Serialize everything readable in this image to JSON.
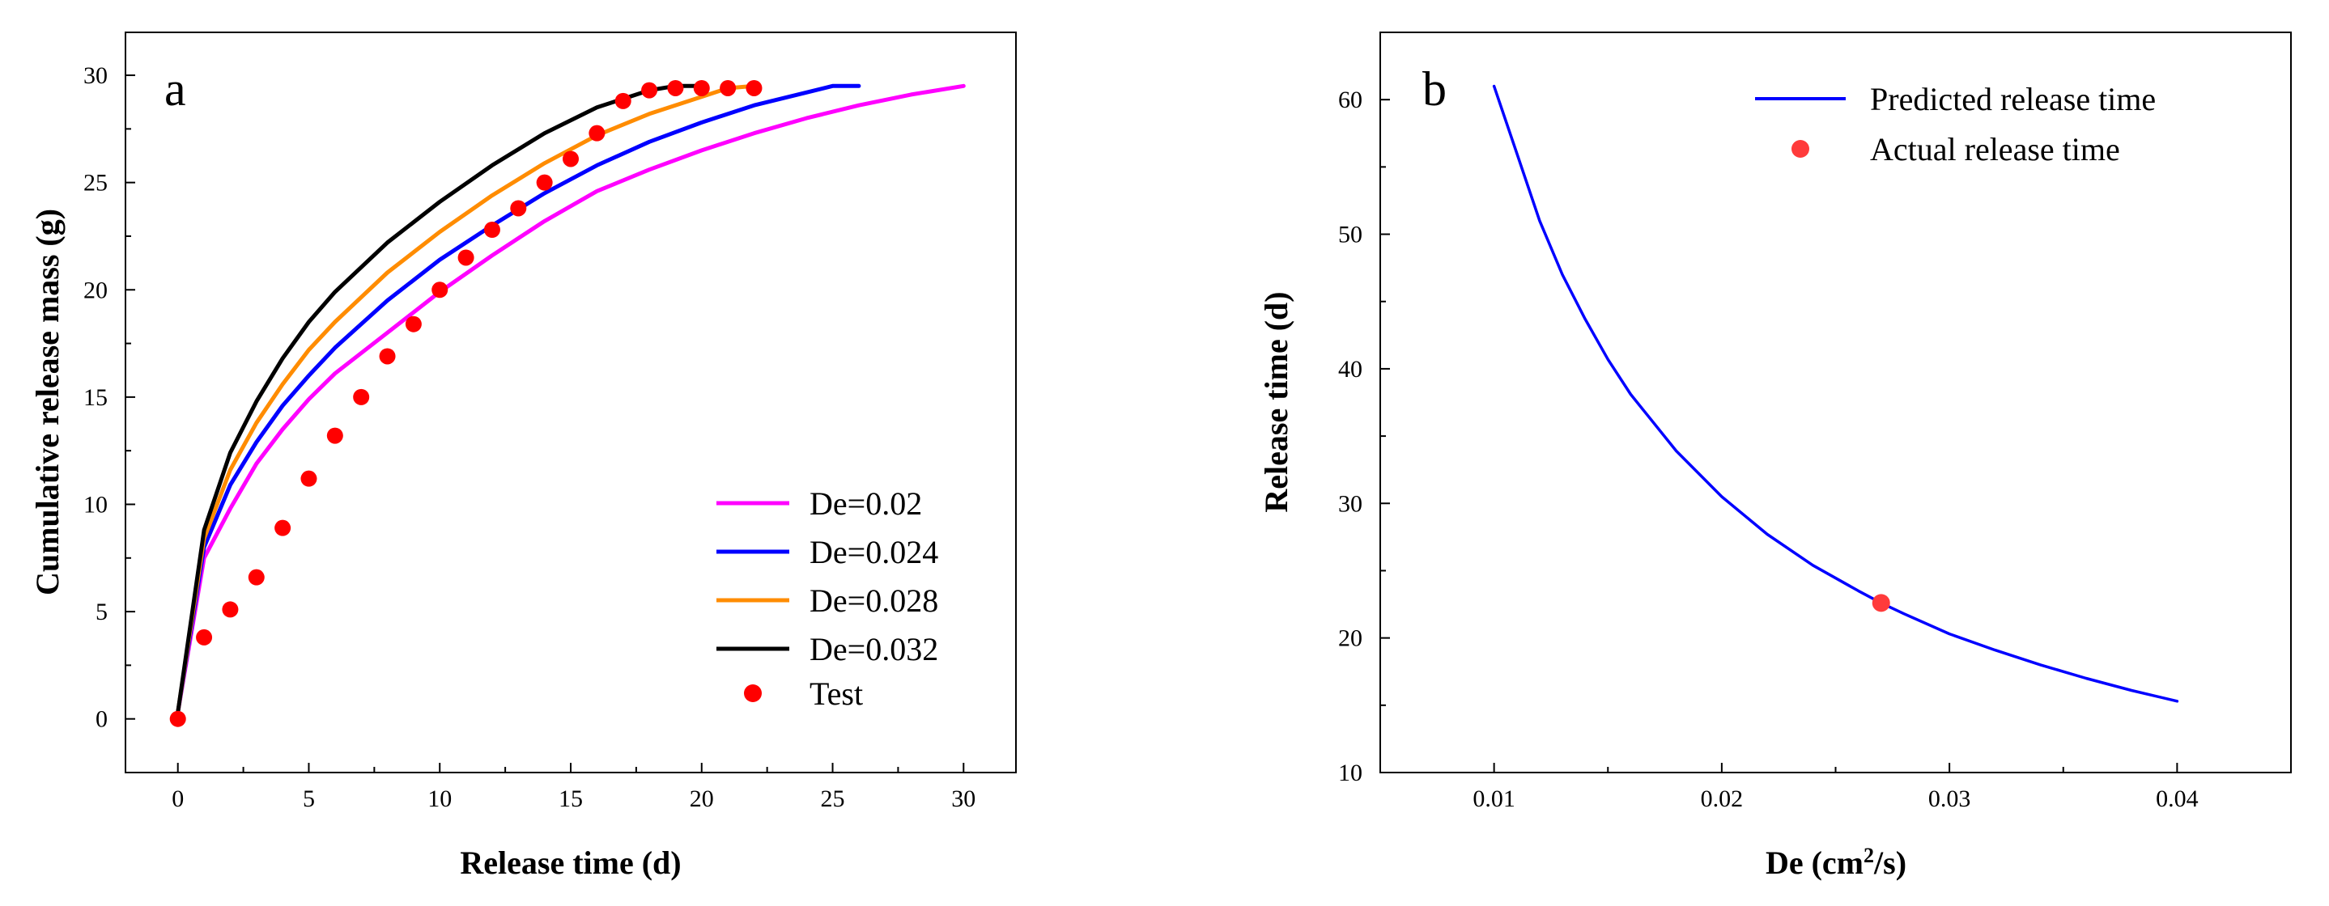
{
  "colors": {
    "de_002": "#ff00ff",
    "de_0024": "#0000ff",
    "de_0028": "#ff8c00",
    "de_0032": "#000000",
    "test": "#ff0000",
    "predicted": "#0000ff",
    "actual": "#ff3b3b"
  },
  "chart_data": [
    {
      "type": "line",
      "panel_label": "a",
      "xlabel": "Release time (d)",
      "ylabel": "Cumulative release mass (g)",
      "xlim": [
        -2,
        32
      ],
      "ylim": [
        -2.5,
        32
      ],
      "xticks": [
        0,
        5,
        10,
        15,
        20,
        25,
        30
      ],
      "yticks": [
        0,
        5,
        10,
        15,
        20,
        25,
        30
      ],
      "grid": false,
      "legend_position": "bottom-right",
      "series": [
        {
          "name": "De=0.02",
          "color_key": "de_002",
          "x": [
            0,
            1,
            2,
            3,
            4,
            5,
            6,
            8,
            10,
            12,
            14,
            16,
            18,
            20,
            22,
            24,
            26,
            28,
            30
          ],
          "y": [
            0.3,
            7.5,
            9.8,
            11.9,
            13.5,
            14.9,
            16.1,
            18.0,
            19.9,
            21.6,
            23.2,
            24.6,
            25.6,
            26.5,
            27.3,
            28.0,
            28.6,
            29.1,
            29.5
          ]
        },
        {
          "name": "De=0.024",
          "color_key": "de_0024",
          "x": [
            0,
            1,
            2,
            3,
            4,
            5,
            6,
            8,
            10,
            12,
            14,
            16,
            18,
            20,
            22,
            24,
            25,
            26
          ],
          "y": [
            0.3,
            8.0,
            10.9,
            12.9,
            14.6,
            16.0,
            17.3,
            19.5,
            21.4,
            23.0,
            24.5,
            25.8,
            26.9,
            27.8,
            28.6,
            29.2,
            29.5,
            29.5
          ]
        },
        {
          "name": "De=0.028",
          "color_key": "de_0028",
          "x": [
            0,
            1,
            2,
            3,
            4,
            5,
            6,
            8,
            10,
            12,
            14,
            16,
            18,
            20,
            21,
            22
          ],
          "y": [
            0.3,
            8.4,
            11.6,
            13.8,
            15.6,
            17.2,
            18.5,
            20.8,
            22.7,
            24.4,
            25.9,
            27.2,
            28.2,
            29.0,
            29.4,
            29.5
          ]
        },
        {
          "name": "De=0.032",
          "color_key": "de_0032",
          "x": [
            0,
            1,
            2,
            3,
            4,
            5,
            6,
            8,
            10,
            12,
            14,
            16,
            18,
            19,
            20
          ],
          "y": [
            0.3,
            8.8,
            12.4,
            14.8,
            16.8,
            18.5,
            19.9,
            22.2,
            24.1,
            25.8,
            27.3,
            28.5,
            29.3,
            29.5,
            29.5
          ]
        },
        {
          "name": "Test",
          "color_key": "test",
          "marker": "circle",
          "x": [
            0,
            1,
            2,
            3,
            4,
            5,
            6,
            7,
            8,
            9,
            10,
            11,
            12,
            13,
            14,
            15,
            16,
            17,
            18,
            19,
            20,
            21,
            22
          ],
          "y": [
            0,
            3.8,
            5.1,
            6.6,
            8.9,
            11.2,
            13.2,
            15.0,
            16.9,
            18.4,
            20.0,
            21.5,
            22.8,
            23.8,
            25.0,
            26.1,
            27.3,
            28.8,
            29.3,
            29.4,
            29.4,
            29.4,
            29.4
          ]
        }
      ]
    },
    {
      "type": "line",
      "panel_label": "b",
      "xlabel_main": "De (cm",
      "xlabel_sup": "2",
      "xlabel_tail": "/s)",
      "ylabel": "Release time (d)",
      "xlim": [
        0.005,
        0.045
      ],
      "ylim": [
        10,
        65
      ],
      "xticks": [
        0.01,
        0.02,
        0.03,
        0.04
      ],
      "yticks": [
        10,
        20,
        30,
        40,
        50,
        60
      ],
      "grid": false,
      "legend_position": "top-right",
      "series": [
        {
          "name": "Predicted release time",
          "color_key": "predicted",
          "x": [
            0.01,
            0.011,
            0.012,
            0.013,
            0.014,
            0.015,
            0.016,
            0.018,
            0.02,
            0.022,
            0.024,
            0.026,
            0.027,
            0.028,
            0.03,
            0.032,
            0.034,
            0.036,
            0.038,
            0.04
          ],
          "y": [
            61.0,
            56.0,
            51.0,
            47.0,
            43.7,
            40.7,
            38.1,
            33.9,
            30.5,
            27.7,
            25.4,
            23.5,
            22.6,
            21.8,
            20.3,
            19.1,
            18.0,
            17.0,
            16.1,
            15.3
          ]
        },
        {
          "name": "Actual release time",
          "color_key": "actual",
          "marker": "circle",
          "x": [
            0.027
          ],
          "y": [
            22.6
          ]
        }
      ]
    }
  ]
}
